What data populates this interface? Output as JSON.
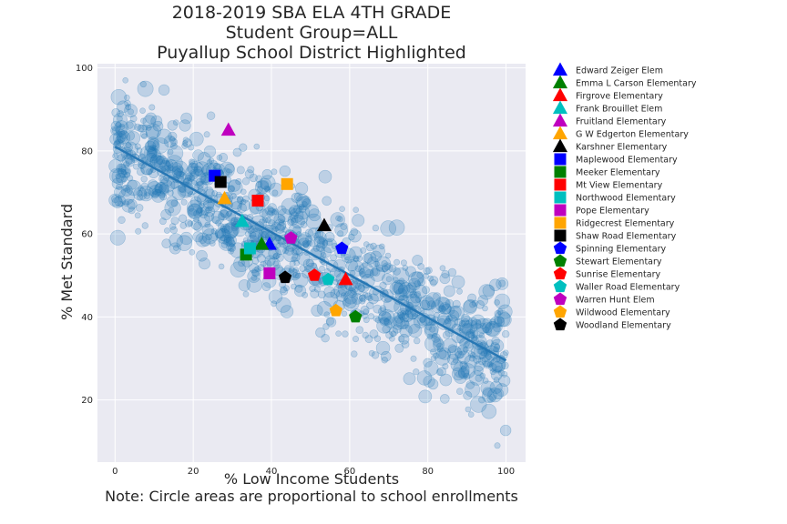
{
  "chart_data": {
    "type": "scatter",
    "title_lines": [
      "2018-2019 SBA ELA 4TH GRADE",
      "Student Group=ALL",
      "Puyallup School District Highlighted"
    ],
    "xlabel": "% Low Income Students",
    "xlabel_note": "Note: Circle areas are proportional to school enrollments",
    "ylabel": "% Met Standard",
    "xlim": [
      -4.5,
      105
    ],
    "ylim": [
      5,
      101
    ],
    "xticks": [
      "0",
      "20",
      "40",
      "60",
      "80",
      "100"
    ],
    "yticks": [
      "20",
      "40",
      "60",
      "80",
      "100"
    ],
    "grid": true,
    "legend_position": "outside-right",
    "background_color": "#eaeaf2",
    "cloud_color": "#1f77b4",
    "trend_line": {
      "x": [
        0,
        100
      ],
      "y": [
        81,
        29.5
      ],
      "color": "#2777b4"
    },
    "state_schools_note": "dense cloud of translucent circles following the trend line",
    "highlighted": [
      {
        "name": "Edward Zeiger Elem",
        "marker": "triangle",
        "color": "#0000ff",
        "x": 39.5,
        "y": 57.5
      },
      {
        "name": "Emma L Carson Elementary",
        "marker": "triangle",
        "color": "#008000",
        "x": 37.5,
        "y": 57.5
      },
      {
        "name": "Firgrove Elementary",
        "marker": "triangle",
        "color": "#ff0000",
        "x": 59,
        "y": 49
      },
      {
        "name": "Frank Brouillet Elem",
        "marker": "triangle",
        "color": "#00bfbf",
        "x": 32.5,
        "y": 63
      },
      {
        "name": "Fruitland Elementary",
        "marker": "triangle",
        "color": "#bf00bf",
        "x": 29,
        "y": 85
      },
      {
        "name": "G W Edgerton Elementary",
        "marker": "triangle",
        "color": "#ffa500",
        "x": 28,
        "y": 68.5
      },
      {
        "name": "Karshner Elementary",
        "marker": "triangle",
        "color": "#000000",
        "x": 53.5,
        "y": 62
      },
      {
        "name": "Maplewood Elementary",
        "marker": "square",
        "color": "#0000ff",
        "x": 25.5,
        "y": 74
      },
      {
        "name": "Meeker Elementary",
        "marker": "square",
        "color": "#008000",
        "x": 33.5,
        "y": 55
      },
      {
        "name": "Mt View Elementary",
        "marker": "square",
        "color": "#ff0000",
        "x": 36.5,
        "y": 68
      },
      {
        "name": "Northwood Elementary",
        "marker": "square",
        "color": "#00bfbf",
        "x": 34.5,
        "y": 56.5
      },
      {
        "name": "Pope Elementary",
        "marker": "square",
        "color": "#bf00bf",
        "x": 39.5,
        "y": 50.5
      },
      {
        "name": "Ridgecrest Elementary",
        "marker": "square",
        "color": "#ffa500",
        "x": 44,
        "y": 72
      },
      {
        "name": "Shaw Road Elementary",
        "marker": "square",
        "color": "#000000",
        "x": 27,
        "y": 72.5
      },
      {
        "name": "Spinning Elementary",
        "marker": "pentagon",
        "color": "#0000ff",
        "x": 58,
        "y": 56.5
      },
      {
        "name": "Stewart Elementary",
        "marker": "pentagon",
        "color": "#008000",
        "x": 61.5,
        "y": 40
      },
      {
        "name": "Sunrise Elementary",
        "marker": "pentagon",
        "color": "#ff0000",
        "x": 51,
        "y": 50
      },
      {
        "name": "Waller Road Elementary",
        "marker": "pentagon",
        "color": "#00bfbf",
        "x": 54.5,
        "y": 49
      },
      {
        "name": "Warren Hunt Elem",
        "marker": "pentagon",
        "color": "#bf00bf",
        "x": 45,
        "y": 59
      },
      {
        "name": "Wildwood Elementary",
        "marker": "pentagon",
        "color": "#ffa500",
        "x": 56.5,
        "y": 41.5
      },
      {
        "name": "Woodland Elementary",
        "marker": "pentagon",
        "color": "#000000",
        "x": 43.5,
        "y": 49.5
      }
    ]
  }
}
